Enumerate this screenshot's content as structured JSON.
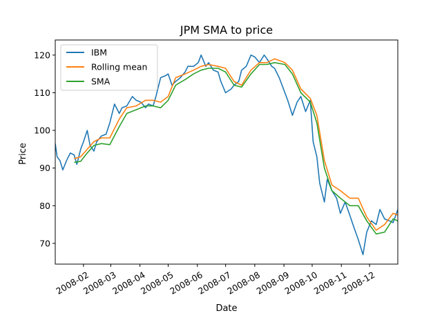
{
  "chart_data": {
    "type": "line",
    "title": "JPM SMA to price",
    "xlabel": "Date",
    "ylabel": "Price",
    "xlim": [
      "2008-01-02",
      "2008-12-31"
    ],
    "ylim": [
      64.5,
      124
    ],
    "yticks": [
      70,
      80,
      90,
      100,
      110,
      120
    ],
    "xticks": [
      "2008-02-01",
      "2008-03-01",
      "2008-04-01",
      "2008-05-01",
      "2008-06-01",
      "2008-07-01",
      "2008-08-01",
      "2008-09-01",
      "2008-10-01",
      "2008-11-01",
      "2008-12-01"
    ],
    "xtick_labels": [
      "2008-02",
      "2008-03",
      "2008-04",
      "2008-05",
      "2008-06",
      "2008-07",
      "2008-08",
      "2008-09",
      "2008-10",
      "2008-11",
      "2008-12"
    ],
    "legend": {
      "position": "top-left",
      "entries": [
        "IBM",
        "Rolling mean",
        "SMA"
      ]
    },
    "colors": {
      "IBM": "#1f77b4",
      "Rolling mean": "#ff7f0e",
      "SMA": "#2ca02c"
    },
    "series": [
      {
        "name": "IBM",
        "x": [
          "2008-01-02",
          "2008-01-04",
          "2008-01-07",
          "2008-01-10",
          "2008-01-14",
          "2008-01-18",
          "2008-01-22",
          "2008-01-25",
          "2008-01-29",
          "2008-02-01",
          "2008-02-05",
          "2008-02-08",
          "2008-02-12",
          "2008-02-15",
          "2008-02-20",
          "2008-02-25",
          "2008-02-29",
          "2008-03-05",
          "2008-03-10",
          "2008-03-13",
          "2008-03-18",
          "2008-03-24",
          "2008-03-28",
          "2008-04-02",
          "2008-04-07",
          "2008-04-10",
          "2008-04-15",
          "2008-04-18",
          "2008-04-23",
          "2008-04-28",
          "2008-05-01",
          "2008-05-05",
          "2008-05-09",
          "2008-05-14",
          "2008-05-19",
          "2008-05-22",
          "2008-05-28",
          "2008-06-02",
          "2008-06-05",
          "2008-06-10",
          "2008-06-13",
          "2008-06-18",
          "2008-06-23",
          "2008-06-26",
          "2008-07-01",
          "2008-07-07",
          "2008-07-10",
          "2008-07-15",
          "2008-07-18",
          "2008-07-23",
          "2008-07-28",
          "2008-08-01",
          "2008-08-06",
          "2008-08-11",
          "2008-08-14",
          "2008-08-19",
          "2008-08-22",
          "2008-08-27",
          "2008-09-02",
          "2008-09-05",
          "2008-09-10",
          "2008-09-15",
          "2008-09-19",
          "2008-09-24",
          "2008-09-29",
          "2008-10-02",
          "2008-10-06",
          "2008-10-09",
          "2008-10-14",
          "2008-10-17",
          "2008-10-22",
          "2008-10-27",
          "2008-10-31",
          "2008-11-05",
          "2008-11-10",
          "2008-11-14",
          "2008-11-19",
          "2008-11-24",
          "2008-11-28",
          "2008-12-03",
          "2008-12-08",
          "2008-12-12",
          "2008-12-17",
          "2008-12-22",
          "2008-12-26",
          "2008-12-31"
        ],
        "values": [
          96.5,
          93,
          92,
          89.5,
          92,
          94,
          93.5,
          91,
          95,
          97,
          100,
          96,
          94.5,
          97,
          98.5,
          99,
          102,
          107,
          104.5,
          106,
          106.5,
          109,
          108,
          107.5,
          106,
          107,
          106.5,
          109,
          114,
          114.5,
          115,
          112,
          113,
          114,
          115.5,
          117,
          117,
          118,
          120,
          117,
          118,
          116,
          115.5,
          113,
          110,
          111,
          112,
          113,
          116,
          117,
          120,
          119.5,
          118,
          120,
          119,
          117,
          116.5,
          114,
          110,
          108,
          104,
          107.5,
          109,
          105,
          108,
          97,
          93,
          86,
          81,
          87,
          84,
          82,
          78,
          81,
          77.5,
          74.5,
          71,
          67,
          73,
          76,
          75,
          79,
          76.5,
          76,
          75.5,
          79
        ]
      },
      {
        "name": "Rolling mean",
        "x": [
          "2008-01-22",
          "2008-01-29",
          "2008-02-05",
          "2008-02-12",
          "2008-02-20",
          "2008-02-29",
          "2008-03-10",
          "2008-03-18",
          "2008-03-28",
          "2008-04-07",
          "2008-04-15",
          "2008-04-23",
          "2008-05-01",
          "2008-05-09",
          "2008-05-19",
          "2008-05-28",
          "2008-06-05",
          "2008-06-13",
          "2008-06-23",
          "2008-07-01",
          "2008-07-10",
          "2008-07-18",
          "2008-07-28",
          "2008-08-06",
          "2008-08-14",
          "2008-08-22",
          "2008-09-02",
          "2008-09-10",
          "2008-09-19",
          "2008-09-29",
          "2008-10-06",
          "2008-10-14",
          "2008-10-22",
          "2008-10-31",
          "2008-11-10",
          "2008-11-19",
          "2008-11-28",
          "2008-12-08",
          "2008-12-17",
          "2008-12-26",
          "2008-12-31"
        ],
        "values": [
          92.5,
          93,
          95,
          97,
          98,
          98,
          103,
          106,
          106.5,
          108,
          108,
          107.5,
          109,
          114,
          115,
          116,
          117,
          117.5,
          117,
          116.5,
          113,
          112,
          116,
          118,
          118,
          119,
          118,
          116,
          111,
          108.5,
          104,
          92,
          85.5,
          84,
          82,
          82,
          77,
          73.5,
          75,
          78,
          77.5
        ]
      },
      {
        "name": "SMA",
        "x": [
          "2008-01-22",
          "2008-01-29",
          "2008-02-05",
          "2008-02-12",
          "2008-02-20",
          "2008-02-29",
          "2008-03-10",
          "2008-03-18",
          "2008-03-28",
          "2008-04-07",
          "2008-04-15",
          "2008-04-23",
          "2008-05-01",
          "2008-05-09",
          "2008-05-19",
          "2008-05-28",
          "2008-06-05",
          "2008-06-13",
          "2008-06-23",
          "2008-07-01",
          "2008-07-10",
          "2008-07-18",
          "2008-07-28",
          "2008-08-06",
          "2008-08-14",
          "2008-08-22",
          "2008-09-02",
          "2008-09-10",
          "2008-09-19",
          "2008-09-29",
          "2008-10-06",
          "2008-10-14",
          "2008-10-22",
          "2008-10-31",
          "2008-11-10",
          "2008-11-19",
          "2008-11-28",
          "2008-12-08",
          "2008-12-17",
          "2008-12-26",
          "2008-12-31"
        ],
        "values": [
          91.5,
          91.8,
          94,
          96,
          96.5,
          96.2,
          101,
          104.5,
          105.5,
          106.5,
          106.5,
          106,
          108,
          112,
          113.5,
          115,
          116,
          116.5,
          116.5,
          115.5,
          112,
          111.5,
          115,
          117.5,
          117.5,
          118,
          117.5,
          115,
          110,
          107.5,
          102,
          90,
          84,
          82,
          80,
          80,
          76,
          72.5,
          73,
          76.5,
          76
        ]
      }
    ]
  }
}
